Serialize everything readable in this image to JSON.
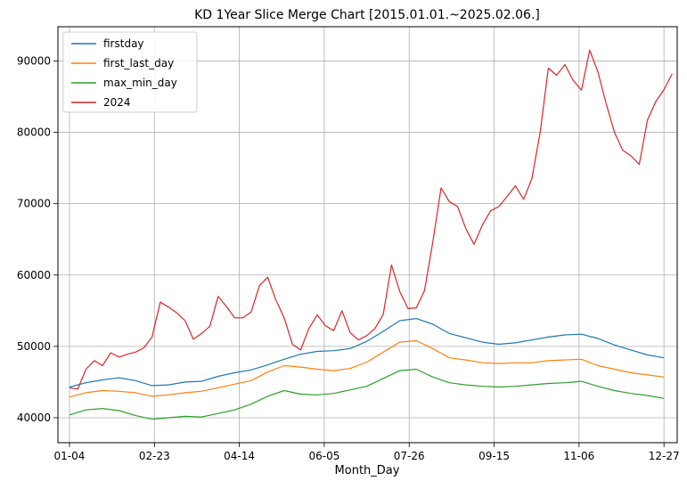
{
  "chart_data": {
    "type": "line",
    "title": "KD 1Year Slice Merge Chart [2015.01.01.~2025.02.06.]",
    "xlabel": "Month_Day",
    "ylabel": "",
    "x_tick_labels": [
      "01-04",
      "02-23",
      "04-14",
      "06-05",
      "07-26",
      "09-15",
      "11-06",
      "12-27"
    ],
    "y_ticks": [
      40000,
      50000,
      60000,
      70000,
      80000,
      90000
    ],
    "ylim": [
      36500,
      94800
    ],
    "x_range_days": [
      -7,
      368
    ],
    "grid": true,
    "legend_position": "upper-left",
    "series": [
      {
        "name": "firstday",
        "color": "#1f77b4",
        "points": [
          [
            0,
            44300
          ],
          [
            10,
            44900
          ],
          [
            20,
            45300
          ],
          [
            30,
            45600
          ],
          [
            40,
            45200
          ],
          [
            50,
            44500
          ],
          [
            60,
            44600
          ],
          [
            70,
            45000
          ],
          [
            80,
            45100
          ],
          [
            90,
            45800
          ],
          [
            100,
            46300
          ],
          [
            110,
            46700
          ],
          [
            120,
            47400
          ],
          [
            130,
            48200
          ],
          [
            140,
            48900
          ],
          [
            150,
            49300
          ],
          [
            160,
            49400
          ],
          [
            170,
            49700
          ],
          [
            180,
            50700
          ],
          [
            190,
            52100
          ],
          [
            200,
            53600
          ],
          [
            210,
            53900
          ],
          [
            220,
            53100
          ],
          [
            230,
            51800
          ],
          [
            240,
            51200
          ],
          [
            250,
            50600
          ],
          [
            260,
            50300
          ],
          [
            270,
            50500
          ],
          [
            280,
            50900
          ],
          [
            290,
            51300
          ],
          [
            300,
            51600
          ],
          [
            310,
            51700
          ],
          [
            320,
            51100
          ],
          [
            330,
            50200
          ],
          [
            340,
            49500
          ],
          [
            350,
            48800
          ],
          [
            360,
            48400
          ]
        ]
      },
      {
        "name": "first_last_day",
        "color": "#ff7f0e",
        "points": [
          [
            0,
            42900
          ],
          [
            10,
            43500
          ],
          [
            20,
            43800
          ],
          [
            30,
            43700
          ],
          [
            40,
            43500
          ],
          [
            50,
            43000
          ],
          [
            60,
            43200
          ],
          [
            70,
            43500
          ],
          [
            80,
            43700
          ],
          [
            90,
            44200
          ],
          [
            100,
            44700
          ],
          [
            110,
            45200
          ],
          [
            120,
            46400
          ],
          [
            130,
            47300
          ],
          [
            140,
            47100
          ],
          [
            150,
            46800
          ],
          [
            160,
            46600
          ],
          [
            170,
            46900
          ],
          [
            180,
            47800
          ],
          [
            190,
            49200
          ],
          [
            200,
            50600
          ],
          [
            210,
            50800
          ],
          [
            220,
            49700
          ],
          [
            230,
            48400
          ],
          [
            240,
            48100
          ],
          [
            250,
            47700
          ],
          [
            260,
            47600
          ],
          [
            270,
            47700
          ],
          [
            280,
            47700
          ],
          [
            290,
            48000
          ],
          [
            300,
            48100
          ],
          [
            310,
            48200
          ],
          [
            320,
            47300
          ],
          [
            330,
            46800
          ],
          [
            340,
            46300
          ],
          [
            350,
            46000
          ],
          [
            360,
            45700
          ]
        ]
      },
      {
        "name": "max_min_day",
        "color": "#2ca02c",
        "points": [
          [
            0,
            40400
          ],
          [
            10,
            41100
          ],
          [
            20,
            41300
          ],
          [
            30,
            41000
          ],
          [
            40,
            40300
          ],
          [
            50,
            39800
          ],
          [
            60,
            40000
          ],
          [
            70,
            40200
          ],
          [
            80,
            40100
          ],
          [
            90,
            40600
          ],
          [
            100,
            41100
          ],
          [
            110,
            41900
          ],
          [
            120,
            43000
          ],
          [
            130,
            43800
          ],
          [
            140,
            43300
          ],
          [
            150,
            43200
          ],
          [
            160,
            43400
          ],
          [
            170,
            43900
          ],
          [
            180,
            44400
          ],
          [
            190,
            45500
          ],
          [
            200,
            46600
          ],
          [
            210,
            46800
          ],
          [
            220,
            45700
          ],
          [
            230,
            44900
          ],
          [
            240,
            44600
          ],
          [
            250,
            44400
          ],
          [
            260,
            44300
          ],
          [
            270,
            44400
          ],
          [
            280,
            44600
          ],
          [
            290,
            44800
          ],
          [
            300,
            44900
          ],
          [
            310,
            45100
          ],
          [
            320,
            44400
          ],
          [
            330,
            43800
          ],
          [
            340,
            43400
          ],
          [
            350,
            43100
          ],
          [
            360,
            42700
          ]
        ]
      },
      {
        "name": "2024",
        "color": "#d62728",
        "points": [
          [
            0,
            44200
          ],
          [
            5,
            44000
          ],
          [
            10,
            46800
          ],
          [
            15,
            48000
          ],
          [
            20,
            47300
          ],
          [
            25,
            49100
          ],
          [
            30,
            48500
          ],
          [
            35,
            48900
          ],
          [
            40,
            49200
          ],
          [
            45,
            49800
          ],
          [
            50,
            51300
          ],
          [
            55,
            56200
          ],
          [
            60,
            55500
          ],
          [
            65,
            54700
          ],
          [
            70,
            53600
          ],
          [
            75,
            51000
          ],
          [
            80,
            51800
          ],
          [
            85,
            52800
          ],
          [
            90,
            57000
          ],
          [
            95,
            55600
          ],
          [
            100,
            54000
          ],
          [
            105,
            54000
          ],
          [
            110,
            54800
          ],
          [
            115,
            58500
          ],
          [
            120,
            59700
          ],
          [
            125,
            56500
          ],
          [
            130,
            54000
          ],
          [
            135,
            50300
          ],
          [
            140,
            49500
          ],
          [
            145,
            52500
          ],
          [
            150,
            54400
          ],
          [
            155,
            52900
          ],
          [
            160,
            52200
          ],
          [
            165,
            55000
          ],
          [
            170,
            51900
          ],
          [
            175,
            50900
          ],
          [
            180,
            51500
          ],
          [
            185,
            52500
          ],
          [
            190,
            54500
          ],
          [
            195,
            61400
          ],
          [
            200,
            57700
          ],
          [
            205,
            55300
          ],
          [
            210,
            55400
          ],
          [
            215,
            57800
          ],
          [
            220,
            64600
          ],
          [
            225,
            72200
          ],
          [
            230,
            70300
          ],
          [
            235,
            69600
          ],
          [
            240,
            66500
          ],
          [
            245,
            64300
          ],
          [
            250,
            67000
          ],
          [
            255,
            69000
          ],
          [
            260,
            69600
          ],
          [
            265,
            71000
          ],
          [
            270,
            72500
          ],
          [
            275,
            70600
          ],
          [
            280,
            73500
          ],
          [
            285,
            80000
          ],
          [
            290,
            89000
          ],
          [
            295,
            88000
          ],
          [
            300,
            89500
          ],
          [
            305,
            87300
          ],
          [
            310,
            85900
          ],
          [
            315,
            91500
          ],
          [
            320,
            88500
          ],
          [
            325,
            84000
          ],
          [
            330,
            80000
          ],
          [
            335,
            77500
          ],
          [
            340,
            76700
          ],
          [
            345,
            75500
          ],
          [
            350,
            81700
          ],
          [
            355,
            84300
          ],
          [
            360,
            86000
          ],
          [
            365,
            88200
          ]
        ]
      }
    ]
  }
}
